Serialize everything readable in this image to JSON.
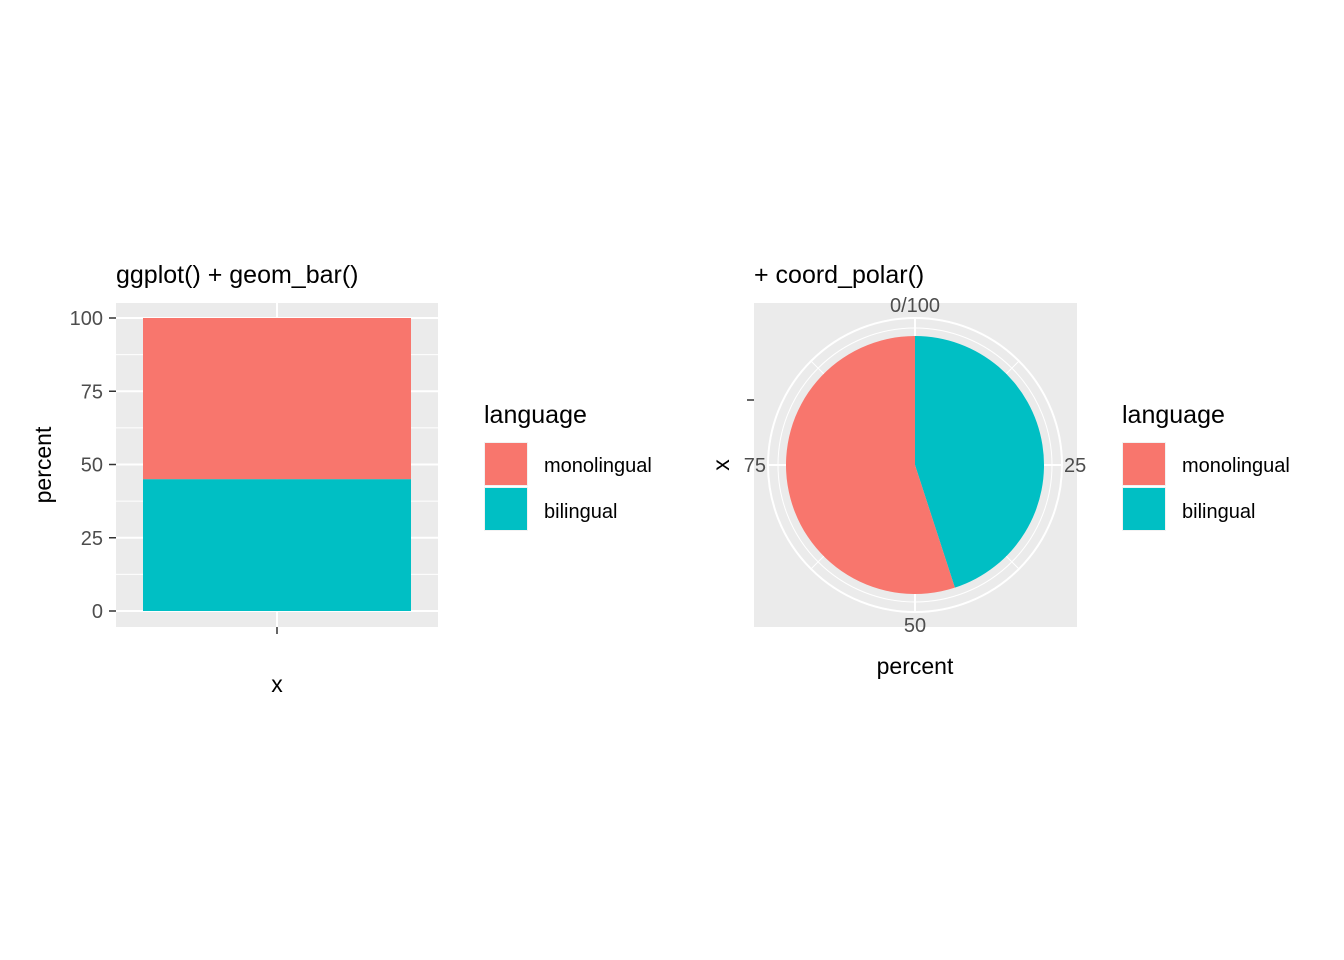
{
  "chart_data": [
    {
      "type": "bar",
      "title": "ggplot() + geom_bar()",
      "xlabel": "x",
      "ylabel": "percent",
      "ylim": [
        0,
        100
      ],
      "yticks": [
        0,
        25,
        50,
        75,
        100
      ],
      "ytick_labels": [
        "0",
        "25",
        "50",
        "75",
        "100"
      ],
      "stacked": true,
      "grid": true,
      "series": [
        {
          "name": "monolingual",
          "value": 55,
          "color": "#F8766D"
        },
        {
          "name": "bilingual",
          "value": 45,
          "color": "#00BFC4"
        }
      ],
      "legend": {
        "title": "language",
        "position": "right",
        "items": [
          "monolingual",
          "bilingual"
        ]
      }
    },
    {
      "type": "pie",
      "title": "+ coord_polar()",
      "xlabel": "percent",
      "ylabel": "x",
      "theta_ticks": [
        0,
        25,
        50,
        75
      ],
      "theta_labels": [
        "0/100",
        "25",
        "50",
        "75"
      ],
      "grid": true,
      "slices": [
        {
          "name": "bilingual",
          "value": 45,
          "color": "#00BFC4"
        },
        {
          "name": "monolingual",
          "value": 55,
          "color": "#F8766D"
        }
      ],
      "legend": {
        "title": "language",
        "position": "right",
        "items": [
          "monolingual",
          "bilingual"
        ]
      }
    }
  ]
}
